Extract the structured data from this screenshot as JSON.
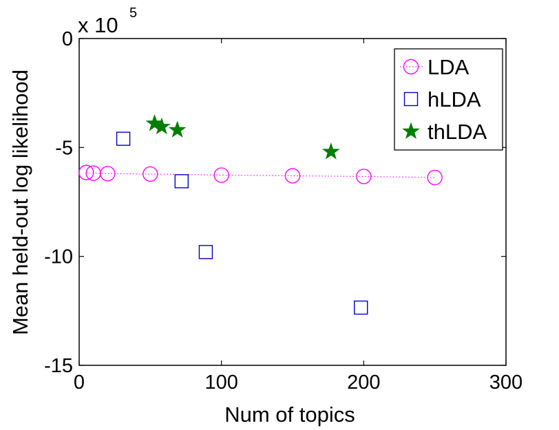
{
  "chart_data": {
    "type": "scatter",
    "title": "",
    "xlabel": "Num of topics",
    "ylabel": "Mean held-out log likelihood",
    "y_multiplier_label": "x 10",
    "y_multiplier_exponent": "5",
    "xlim": [
      0,
      300
    ],
    "ylim": [
      -15,
      0
    ],
    "xticks": [
      0,
      100,
      200,
      300
    ],
    "xtick_labels": [
      "0",
      "100",
      "200",
      "300"
    ],
    "yticks": [
      0,
      -5,
      -10,
      -15
    ],
    "ytick_labels": [
      "0",
      "-5",
      "-10",
      "-15"
    ],
    "grid": false,
    "legend_position": "top-right",
    "series": [
      {
        "name": "LDA",
        "marker": "circle",
        "line": "dotted",
        "color": "#ff00ff",
        "x": [
          5,
          10,
          20,
          50,
          100,
          150,
          200,
          250
        ],
        "y": [
          -6.15,
          -6.18,
          -6.2,
          -6.22,
          -6.27,
          -6.3,
          -6.33,
          -6.38
        ]
      },
      {
        "name": "hLDA",
        "marker": "square",
        "line": "none",
        "color": "#0000cc",
        "x": [
          31,
          72,
          89,
          198
        ],
        "y": [
          -4.6,
          -6.55,
          -9.8,
          -12.35
        ]
      },
      {
        "name": "thLDA",
        "marker": "star",
        "line": "none",
        "color": "#007f00",
        "x": [
          53,
          58,
          69,
          177
        ],
        "y": [
          -3.9,
          -4.05,
          -4.2,
          -5.2
        ]
      }
    ]
  }
}
